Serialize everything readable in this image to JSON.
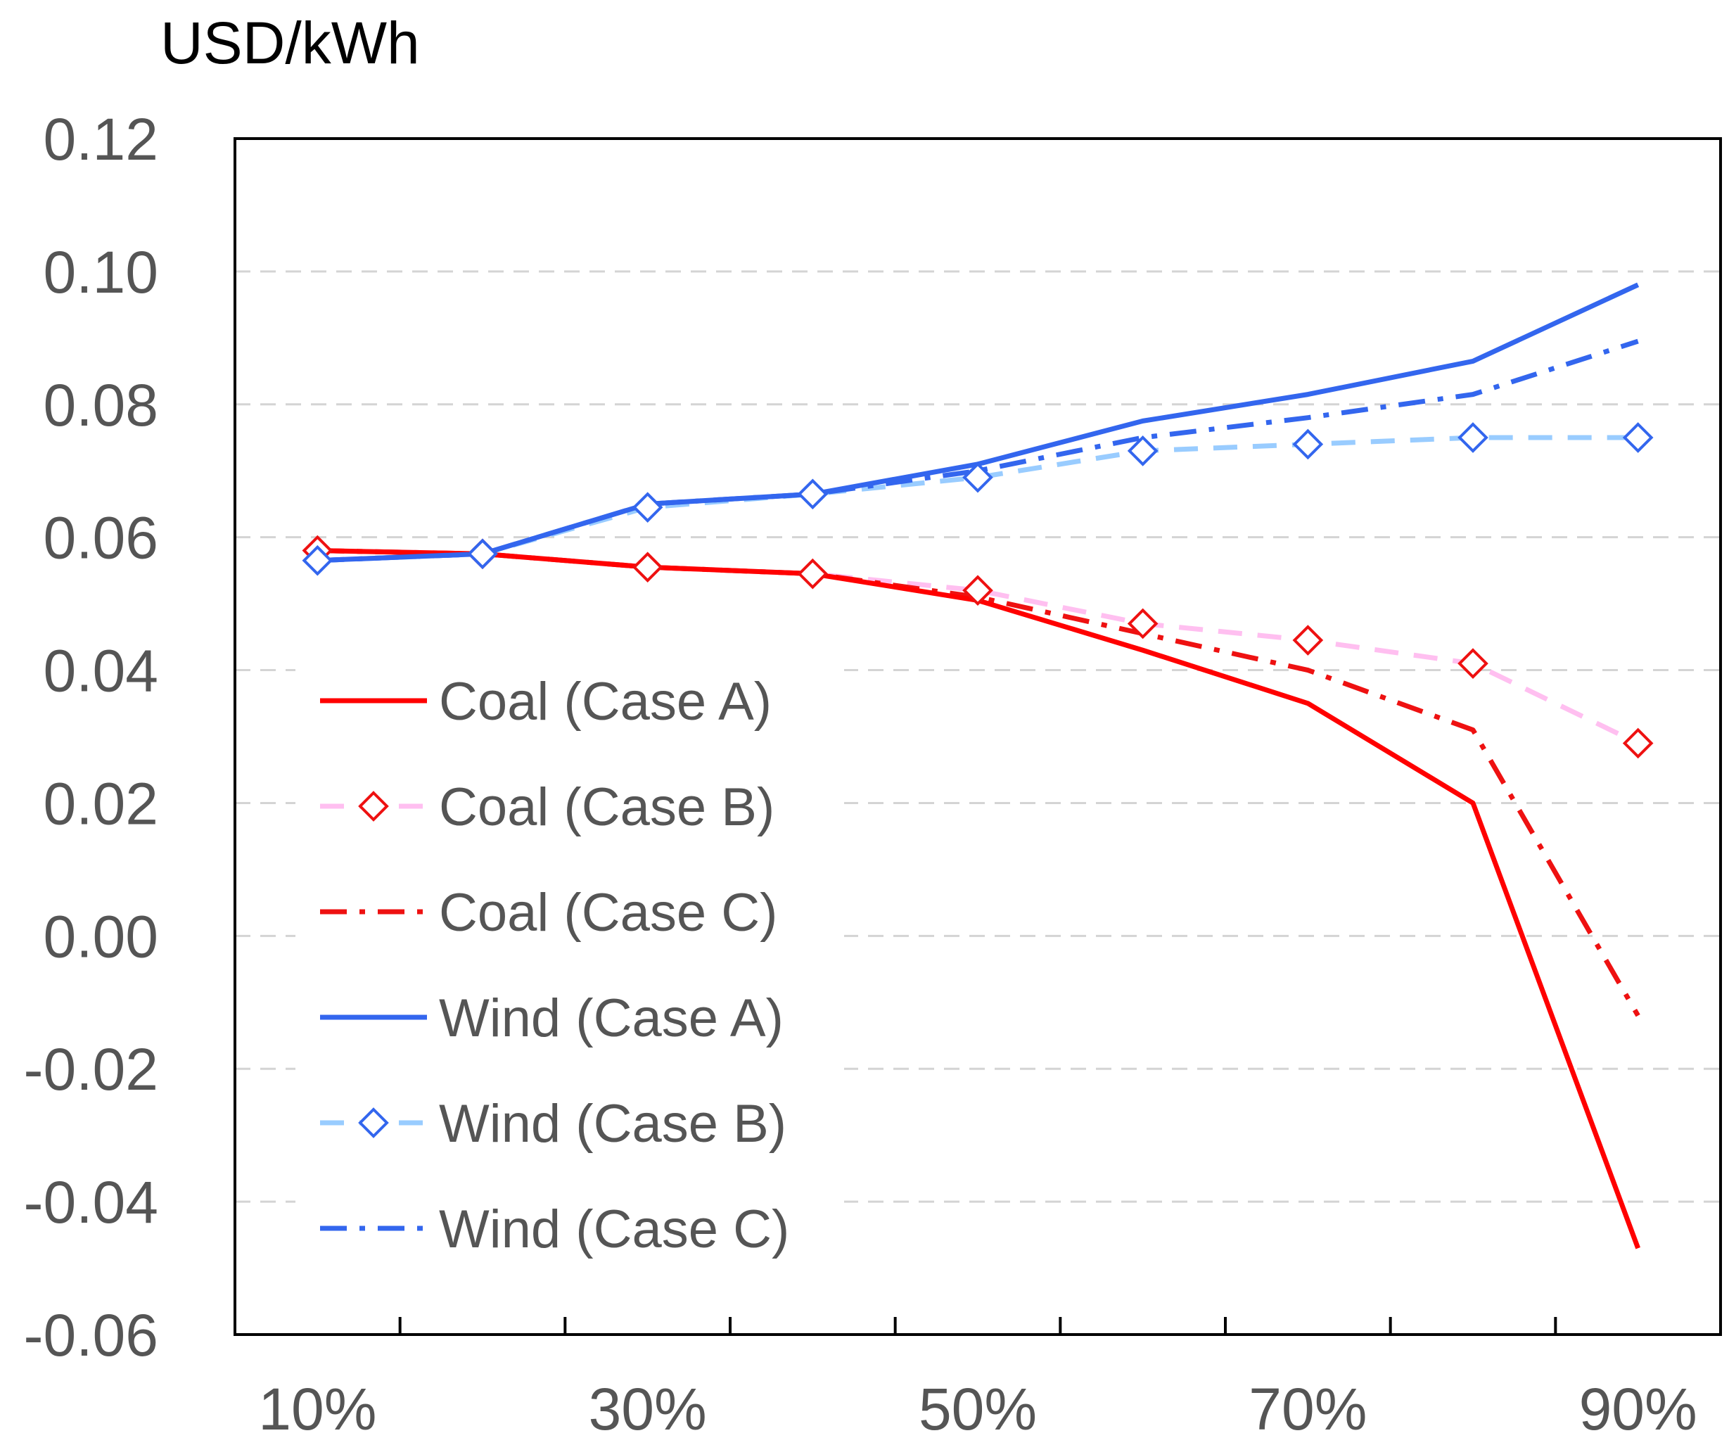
{
  "chart_data": {
    "type": "line",
    "title": "",
    "ylabel": "USD/kWh",
    "xlabel": "",
    "x": [
      0.1,
      0.2,
      0.3,
      0.4,
      0.5,
      0.6,
      0.7,
      0.8,
      0.9
    ],
    "xlim": [
      0.05,
      0.95
    ],
    "ylim": [
      -0.06,
      0.12
    ],
    "xticks": [
      0.1,
      0.2,
      0.3,
      0.4,
      0.5,
      0.6,
      0.7,
      0.8,
      0.9
    ],
    "xtick_labels": [
      "10%",
      "",
      "30%",
      "",
      "50%",
      "",
      "70%",
      "",
      "90%"
    ],
    "yticks": [
      -0.06,
      -0.04,
      -0.02,
      0.0,
      0.02,
      0.04,
      0.06,
      0.08,
      0.1,
      0.12
    ],
    "ytick_labels": [
      "-0.06",
      "-0.04",
      "-0.02",
      "0.00",
      "0.02",
      "0.04",
      "0.06",
      "0.08",
      "0.10",
      "0.12"
    ],
    "grid": "horizontal dashed",
    "legend_position": "left",
    "series": [
      {
        "name": "Coal (Case A)",
        "color": "#ff0000",
        "dash": "solid",
        "marker": "none",
        "values": [
          0.058,
          0.0575,
          0.0555,
          0.0545,
          0.0505,
          0.043,
          0.035,
          0.02,
          -0.047
        ]
      },
      {
        "name": "Coal (Case B)",
        "color": "#ffbff0",
        "dash": "dashed",
        "marker": "diamond",
        "marker_color": "#ee1111",
        "values": [
          0.058,
          0.0575,
          0.0555,
          0.0545,
          0.052,
          0.047,
          0.0445,
          0.041,
          0.029
        ]
      },
      {
        "name": "Coal (Case C)",
        "color": "#ee1111",
        "dash": "dashdot",
        "marker": "none",
        "values": [
          0.058,
          0.0575,
          0.0555,
          0.0545,
          0.051,
          0.0455,
          0.04,
          0.031,
          -0.012
        ]
      },
      {
        "name": "Wind (Case A)",
        "color": "#3366ee",
        "dash": "solid",
        "marker": "none",
        "values": [
          0.0565,
          0.0575,
          0.065,
          0.0665,
          0.071,
          0.0775,
          0.0815,
          0.0865,
          0.098
        ]
      },
      {
        "name": "Wind (Case B)",
        "color": "#99ccff",
        "dash": "dashed",
        "marker": "diamond",
        "marker_color": "#3366ee",
        "values": [
          0.0565,
          0.0575,
          0.0645,
          0.0665,
          0.069,
          0.073,
          0.074,
          0.075,
          0.075
        ]
      },
      {
        "name": "Wind (Case C)",
        "color": "#3366ee",
        "dash": "dashdot",
        "marker": "none",
        "values": [
          0.0565,
          0.0575,
          0.065,
          0.0665,
          0.07,
          0.075,
          0.078,
          0.0815,
          0.0895
        ]
      }
    ]
  }
}
